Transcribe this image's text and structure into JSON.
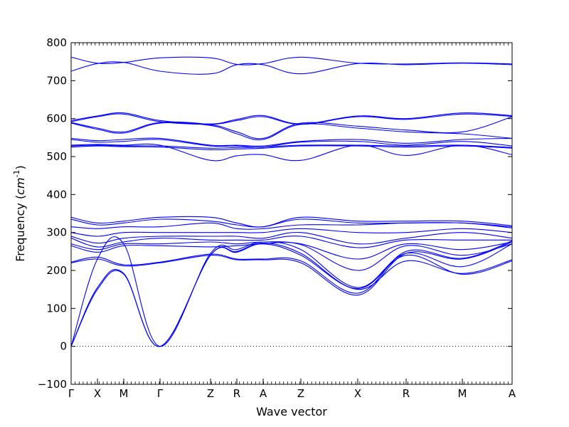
{
  "chart_data": {
    "type": "line",
    "title": "",
    "xlabel": "Wave vector",
    "ylabel": "Frequency",
    "ylabel_unit": "cm",
    "ylabel_unit_exp": "-1",
    "ylim": [
      -100,
      800
    ],
    "yticks": [
      -100,
      0,
      100,
      200,
      300,
      400,
      500,
      600,
      700,
      800
    ],
    "xlim": [
      0,
      6.2
    ],
    "high_symmetry_points": [
      {
        "label": "Γ",
        "x": 0.0
      },
      {
        "label": "X",
        "x": 0.37
      },
      {
        "label": "M",
        "x": 0.74
      },
      {
        "label": "Γ",
        "x": 1.25
      },
      {
        "label": "Z",
        "x": 1.96
      },
      {
        "label": "R",
        "x": 2.33
      },
      {
        "label": "A",
        "x": 2.7
      },
      {
        "label": "Z",
        "x": 3.23
      },
      {
        "label": "X",
        "x": 4.03
      },
      {
        "label": "R",
        "x": 4.71
      },
      {
        "label": "M",
        "x": 5.5
      },
      {
        "label": "A",
        "x": 6.2
      }
    ],
    "zero_line": true,
    "line_color": "#0000ff",
    "branches": [
      [
        0,
        150,
        190,
        0,
        240,
        248,
        270,
        240,
        152,
        240,
        190,
        225
      ],
      [
        0,
        155,
        192,
        0,
        240,
        250,
        272,
        245,
        150,
        225,
        192,
        228
      ],
      [
        0,
        230,
        270,
        0,
        245,
        255,
        275,
        255,
        155,
        245,
        210,
        270
      ],
      [
        220,
        230,
        212,
        220,
        240,
        228,
        228,
        220,
        135,
        245,
        230,
        275
      ],
      [
        222,
        235,
        215,
        222,
        243,
        230,
        230,
        225,
        140,
        250,
        232,
        278
      ],
      [
        265,
        248,
        265,
        265,
        262,
        265,
        270,
        268,
        200,
        265,
        240,
        270
      ],
      [
        270,
        255,
        270,
        270,
        275,
        270,
        275,
        270,
        230,
        270,
        255,
        275
      ],
      [
        285,
        262,
        275,
        285,
        280,
        280,
        280,
        290,
        260,
        280,
        280,
        280
      ],
      [
        290,
        272,
        285,
        290,
        290,
        290,
        285,
        300,
        270,
        285,
        300,
        285
      ],
      [
        300,
        290,
        300,
        300,
        300,
        300,
        300,
        310,
        300,
        300,
        310,
        300
      ],
      [
        315,
        310,
        315,
        315,
        325,
        310,
        310,
        320,
        320,
        325,
        325,
        312
      ],
      [
        335,
        320,
        325,
        335,
        330,
        320,
        315,
        335,
        325,
        325,
        325,
        315
      ],
      [
        340,
        325,
        330,
        340,
        340,
        325,
        315,
        340,
        330,
        330,
        330,
        318
      ],
      [
        525,
        528,
        526,
        525,
        518,
        520,
        522,
        528,
        528,
        525,
        528,
        522
      ],
      [
        528,
        530,
        528,
        528,
        522,
        524,
        525,
        530,
        530,
        528,
        530,
        524
      ],
      [
        530,
        532,
        530,
        530,
        490,
        502,
        505,
        490,
        530,
        503,
        530,
        505
      ],
      [
        545,
        538,
        540,
        545,
        528,
        528,
        525,
        538,
        540,
        530,
        540,
        528
      ],
      [
        548,
        542,
        545,
        548,
        530,
        530,
        528,
        540,
        545,
        535,
        545,
        548
      ],
      [
        588,
        572,
        562,
        588,
        582,
        560,
        545,
        585,
        575,
        565,
        560,
        548
      ],
      [
        590,
        575,
        565,
        590,
        584,
        565,
        548,
        588,
        580,
        570,
        565,
        605
      ],
      [
        592,
        605,
        612,
        592,
        585,
        595,
        605,
        585,
        605,
        598,
        612,
        606
      ],
      [
        595,
        607,
        615,
        595,
        586,
        598,
        608,
        586,
        607,
        600,
        615,
        608
      ],
      [
        725,
        745,
        748,
        725,
        718,
        742,
        742,
        718,
        745,
        742,
        746,
        742
      ],
      [
        762,
        746,
        748,
        760,
        760,
        743,
        745,
        762,
        746,
        744,
        747,
        744
      ]
    ]
  }
}
